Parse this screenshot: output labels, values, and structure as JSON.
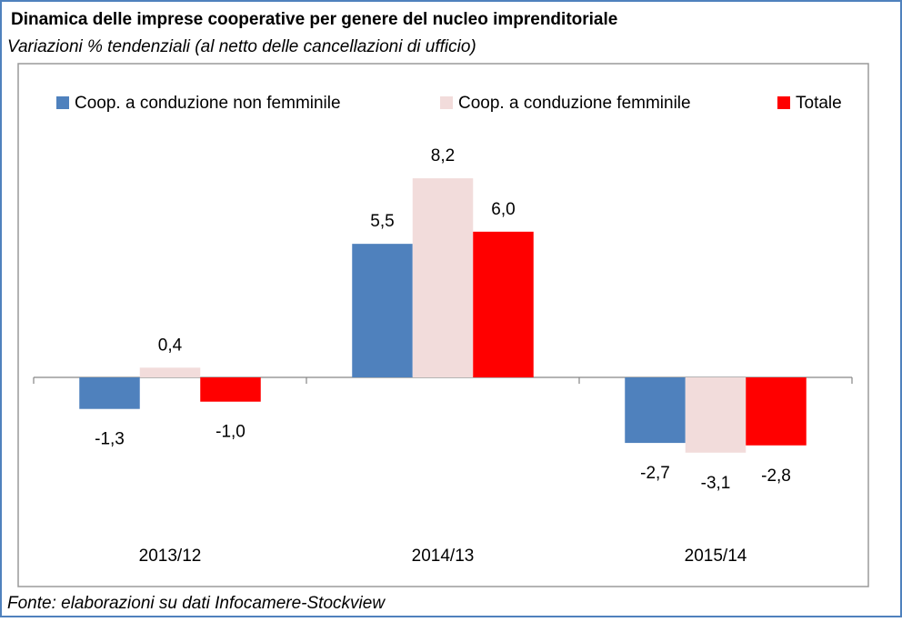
{
  "chart_data": {
    "type": "bar",
    "title": "Dinamica delle imprese cooperative per genere del nucleo imprenditoriale",
    "subtitle": "Variazioni % tendenziali (al netto delle cancellazioni di ufficio)",
    "source": "Fonte: elaborazioni su dati Infocamere-Stockview",
    "categories": [
      "2013/12",
      "2014/13",
      "2015/14"
    ],
    "series": [
      {
        "name": "Coop. a conduzione non femminile",
        "color": "#4f81bd",
        "values": [
          -1.3,
          5.5,
          -2.7
        ],
        "value_labels": [
          "-1,3",
          "5,5",
          "-2,7"
        ]
      },
      {
        "name": "Coop. a conduzione femminile",
        "color": "#f2dcdb",
        "values": [
          0.4,
          8.2,
          -3.1
        ],
        "value_labels": [
          "0,4",
          "8,2",
          "-3,1"
        ]
      },
      {
        "name": "Totale",
        "color": "#ff0000",
        "values": [
          -1.0,
          6.0,
          -2.8
        ],
        "value_labels": [
          "-1,0",
          "6,0",
          "-2,8"
        ]
      }
    ],
    "legend": "top"
  }
}
